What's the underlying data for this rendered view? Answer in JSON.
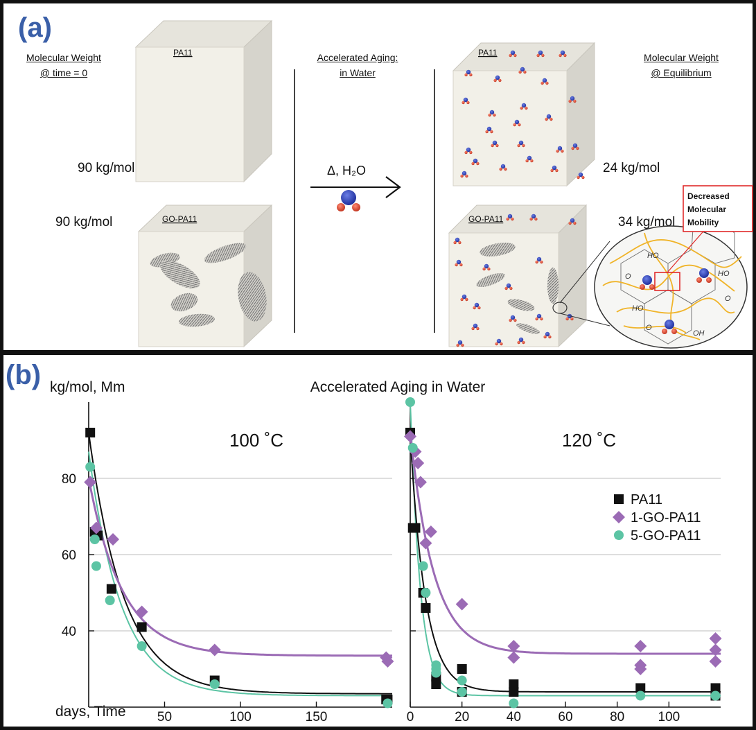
{
  "panel_a": {
    "label": "(a)",
    "left_header_line1": "Molecular Weight",
    "left_header_line2": "@ time = 0",
    "middle_header_line1": "Accelerated Aging:",
    "middle_header_line2": "in Water",
    "right_header_line1": "Molecular Weight",
    "right_header_line2": "@ Equilibrium",
    "box_top_left": "PA11",
    "box_bottom_left": "GO-PA11",
    "box_top_right": "PA11",
    "box_bottom_right": "GO-PA11",
    "mw_top_left": "90 kg/mol",
    "mw_bottom_left": "90 kg/mol",
    "mw_top_right": "24 kg/mol",
    "mw_bottom_right": "34 kg/mol",
    "arrow_label": "Δ, H₂O",
    "callout_line1": "Decreased",
    "callout_line2": "Molecular",
    "callout_line3": "Mobility",
    "inset_labels": [
      "HO",
      "O",
      "HO",
      "O",
      "HO",
      "O",
      "OH"
    ]
  },
  "panel_b": {
    "label": "(b)"
  },
  "chart_data": {
    "type": "scatter",
    "title": "Accelerated Aging in Water",
    "ylabel": "kg/mol, Mm",
    "xlabel": "days, Time",
    "ylim": [
      20,
      100
    ],
    "yticks": [
      40,
      60,
      80
    ],
    "grid": true,
    "legend_position": "right",
    "legend": [
      "PA11",
      "1-GO-PA11",
      "5-GO-PA11"
    ],
    "colors": {
      "PA11": "#111111",
      "1-GO-PA11": "#9b6bb5",
      "5-GO-PA11": "#5cc4a4"
    },
    "panels": [
      {
        "label": "100 ˚C",
        "xlim": [
          0,
          200
        ],
        "xticks": [
          50,
          100,
          150
        ],
        "series": [
          {
            "name": "PA11",
            "marker": "square",
            "x": [
              1,
              4,
              6,
              15,
              35,
              83,
              196,
              197
            ],
            "y": [
              92,
              66,
              65,
              51,
              41,
              27,
              22,
              22
            ]
          },
          {
            "name": "1-GO-PA11",
            "marker": "diamond",
            "x": [
              1,
              5,
              16,
              35,
              83,
              196,
              197
            ],
            "y": [
              79,
              67,
              64,
              45,
              35,
              33,
              32
            ]
          },
          {
            "name": "5-GO-PA11",
            "marker": "circle",
            "x": [
              1,
              4,
              5,
              14,
              35,
              83,
              197
            ],
            "y": [
              83,
              64,
              57,
              48,
              36,
              26,
              21
            ]
          }
        ],
        "fits": {
          "PA11": {
            "a": 92,
            "b": 23.5,
            "k": 0.043
          },
          "1-GO-PA11": {
            "a": 80,
            "b": 33.5,
            "k": 0.045
          },
          "5-GO-PA11": {
            "a": 87,
            "b": 23,
            "k": 0.046
          }
        }
      },
      {
        "label": "120 ˚C",
        "xlim": [
          0,
          120
        ],
        "xticks": [
          0,
          20,
          40,
          60,
          80,
          100
        ],
        "series": [
          {
            "name": "PA11",
            "marker": "square",
            "x": [
              0,
              1,
              2,
              5,
              6,
              10,
              10,
              20,
              20,
              40,
              40,
              89,
              118,
              118
            ],
            "y": [
              92,
              67,
              67,
              50,
              46,
              28,
              26,
              30,
              24,
              26,
              24,
              25,
              25,
              23
            ]
          },
          {
            "name": "1-GO-PA11",
            "marker": "diamond",
            "x": [
              0,
              2,
              3,
              4,
              6,
              8,
              20,
              40,
              40,
              89,
              89,
              89,
              118,
              118,
              118
            ],
            "y": [
              91,
              87,
              84,
              79,
              63,
              66,
              47,
              36,
              33,
              36,
              31,
              30,
              38,
              35,
              32
            ]
          },
          {
            "name": "5-GO-PA11",
            "marker": "circle",
            "x": [
              0,
              1,
              5,
              6,
              10,
              10,
              10,
              20,
              20,
              40,
              89,
              118
            ],
            "y": [
              100,
              88,
              57,
              50,
              31,
              30,
              29,
              27,
              24,
              21,
              23,
              23
            ]
          }
        ],
        "fits": {
          "PA11": {
            "a": 91,
            "b": 24,
            "k": 0.17
          },
          "1-GO-PA11": {
            "a": 92,
            "b": 34,
            "k": 0.11
          },
          "5-GO-PA11": {
            "a": 101,
            "b": 23,
            "k": 0.26
          }
        }
      }
    ]
  }
}
